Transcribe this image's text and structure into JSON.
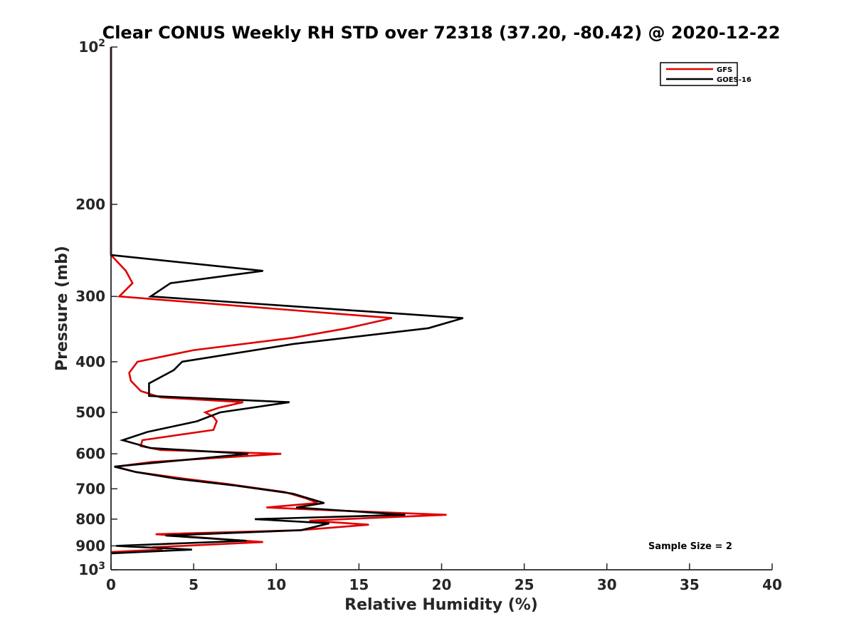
{
  "chart_data": {
    "type": "line",
    "title": "Clear CONUS Weekly RH STD over 72318 (37.20, -80.42) @ 2020-12-22",
    "xlabel": "Relative Humidity (%)",
    "ylabel": "Pressure (mb)",
    "xlim": [
      0,
      40
    ],
    "ylim": [
      100,
      1000
    ],
    "yscale": "log",
    "y_reversed": true,
    "x_ticks": [
      0,
      5,
      10,
      15,
      20,
      25,
      30,
      35,
      40
    ],
    "y_ticks": [
      {
        "value": 100,
        "label": "10",
        "sup": "2"
      },
      {
        "value": 200,
        "label": "200",
        "sup": ""
      },
      {
        "value": 300,
        "label": "300",
        "sup": ""
      },
      {
        "value": 400,
        "label": "400",
        "sup": ""
      },
      {
        "value": 500,
        "label": "500",
        "sup": ""
      },
      {
        "value": 600,
        "label": "600",
        "sup": ""
      },
      {
        "value": 700,
        "label": "700",
        "sup": ""
      },
      {
        "value": 800,
        "label": "800",
        "sup": ""
      },
      {
        "value": 900,
        "label": "900",
        "sup": ""
      },
      {
        "value": 1000,
        "label": "10",
        "sup": "3"
      }
    ],
    "legend_position": "top-right",
    "annotation": "Sample Size = 2",
    "series": [
      {
        "name": "GFS",
        "color": "#e00000",
        "points": [
          [
            0,
            100
          ],
          [
            0,
            250
          ],
          [
            0.9,
            268
          ],
          [
            1.3,
            283
          ],
          [
            0.5,
            300
          ],
          [
            17.0,
            330
          ],
          [
            14.3,
            345
          ],
          [
            11.0,
            360
          ],
          [
            5.0,
            380
          ],
          [
            1.6,
            400
          ],
          [
            1.1,
            420
          ],
          [
            1.2,
            435
          ],
          [
            1.8,
            455
          ],
          [
            3.0,
            468
          ],
          [
            8.0,
            478
          ],
          [
            6.5,
            490
          ],
          [
            5.7,
            500
          ],
          [
            6.2,
            510
          ],
          [
            6.4,
            520
          ],
          [
            6.2,
            540
          ],
          [
            1.9,
            565
          ],
          [
            1.8,
            580
          ],
          [
            3.0,
            590
          ],
          [
            10.3,
            600
          ],
          [
            2.5,
            622
          ],
          [
            0.3,
            635
          ],
          [
            1.5,
            650
          ],
          [
            4.5,
            670
          ],
          [
            7.0,
            685
          ],
          [
            10.5,
            710
          ],
          [
            11.8,
            730
          ],
          [
            12.5,
            745
          ],
          [
            9.4,
            760
          ],
          [
            13.5,
            770
          ],
          [
            20.3,
            785
          ],
          [
            12.0,
            805
          ],
          [
            15.6,
            820
          ],
          [
            11.4,
            840
          ],
          [
            2.7,
            855
          ],
          [
            7.0,
            875
          ],
          [
            9.2,
            885
          ],
          [
            2.7,
            905
          ],
          [
            3.0,
            915
          ],
          [
            0,
            925
          ]
        ]
      },
      {
        "name": "GOES-16",
        "color": "#000000",
        "points": [
          [
            0,
            100
          ],
          [
            0,
            250
          ],
          [
            9.2,
            268
          ],
          [
            3.6,
            283
          ],
          [
            2.4,
            300
          ],
          [
            21.3,
            330
          ],
          [
            19.2,
            345
          ],
          [
            11.0,
            370
          ],
          [
            4.3,
            400
          ],
          [
            3.8,
            415
          ],
          [
            2.3,
            440
          ],
          [
            2.3,
            465
          ],
          [
            10.8,
            478
          ],
          [
            6.6,
            500
          ],
          [
            5.2,
            520
          ],
          [
            2.2,
            545
          ],
          [
            0.7,
            565
          ],
          [
            2.4,
            585
          ],
          [
            8.3,
            600
          ],
          [
            0.2,
            635
          ],
          [
            1.5,
            650
          ],
          [
            4.0,
            670
          ],
          [
            7.5,
            690
          ],
          [
            11.0,
            715
          ],
          [
            12.9,
            745
          ],
          [
            11.2,
            760
          ],
          [
            17.8,
            785
          ],
          [
            8.7,
            800
          ],
          [
            13.2,
            815
          ],
          [
            11.5,
            840
          ],
          [
            3.3,
            860
          ],
          [
            8.2,
            880
          ],
          [
            0.3,
            900
          ],
          [
            4.9,
            915
          ],
          [
            0,
            930
          ]
        ]
      }
    ]
  }
}
